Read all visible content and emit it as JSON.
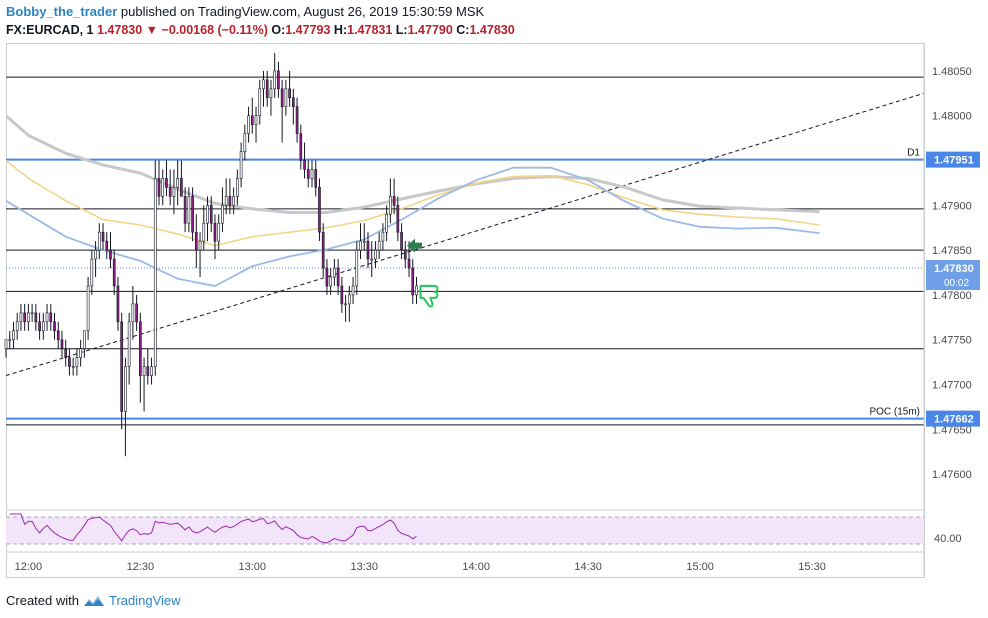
{
  "header": {
    "author": "Bobby_the_trader",
    "published": "published on TradingView.com, August 26, 2019 15:30:59 MSK",
    "symbol": "FX:EURCAD, 1",
    "last": "1.47830",
    "change": "−0.00168 (−0.11%)",
    "o_label": "O:",
    "o": "1.47793",
    "h_label": "H:",
    "h": "1.47831",
    "l_label": "L:",
    "l": "1.47790",
    "c_label": "C:",
    "c": "1.47830"
  },
  "footer": {
    "created_with": "Created with",
    "brand": "TradingView"
  },
  "colors": {
    "up": "#131722",
    "down": "#131722",
    "body_down": "#8b1f86",
    "blue_level": "#4a86e8",
    "ma_gray": "#c8c8c8",
    "ma_yellow": "#f3d488",
    "ma_blue": "#9bbbe6",
    "rsi": "#9c27b0",
    "rsi_fill": "#f3e5f9",
    "arrow_green": "#2f7d4f",
    "hand_green": "#22c55e"
  },
  "chart_data": {
    "type": "candlestick",
    "ylim": [
      1.4756,
      1.4808
    ],
    "y_ticks": [
      "1.47600",
      "1.47650",
      "1.47700",
      "1.47750",
      "1.47800",
      "1.47850",
      "1.47900",
      "1.47950",
      "1.48000",
      "1.48050"
    ],
    "y_tick_values": [
      1.476,
      1.4765,
      1.477,
      1.4775,
      1.478,
      1.4785,
      1.479,
      1.4795,
      1.48,
      1.4805
    ],
    "x_ticks": [
      "12:00",
      "12:30",
      "13:00",
      "13:30",
      "14:00",
      "14:30",
      "15:00",
      "15:30"
    ],
    "x_tick_minutes": [
      0,
      30,
      60,
      90,
      120,
      150,
      180,
      210
    ],
    "x_range_minutes": [
      -6,
      240
    ],
    "horizontal_lines": [
      1.48043,
      1.47896,
      1.4785,
      1.47804,
      1.4774,
      1.47655
    ],
    "blue_levels": [
      {
        "value": 1.47951,
        "label": "1.47951",
        "tag": "D1"
      },
      {
        "value": 1.47662,
        "label": "1.47662",
        "tag": "POC (15m)"
      }
    ],
    "current_price": {
      "value": 1.4783,
      "label": "1.47830",
      "countdown": "00:02"
    },
    "trendline": {
      "from": [
        -6,
        1.4771
      ],
      "to": [
        240,
        1.48025
      ]
    },
    "ma_gray": [
      [
        -6,
        1.48
      ],
      [
        0,
        1.47978
      ],
      [
        10,
        1.47958
      ],
      [
        20,
        1.47945
      ],
      [
        30,
        1.47936
      ],
      [
        40,
        1.47918
      ],
      [
        50,
        1.47902
      ],
      [
        60,
        1.47896
      ],
      [
        70,
        1.47892
      ],
      [
        80,
        1.47892
      ],
      [
        90,
        1.47898
      ],
      [
        100,
        1.47907
      ],
      [
        110,
        1.47916
      ],
      [
        120,
        1.47924
      ],
      [
        130,
        1.4793
      ],
      [
        140,
        1.47932
      ],
      [
        150,
        1.4793
      ],
      [
        160,
        1.4792
      ],
      [
        170,
        1.47906
      ],
      [
        180,
        1.47899
      ],
      [
        190,
        1.47897
      ],
      [
        200,
        1.47895
      ],
      [
        212,
        1.47893
      ]
    ],
    "ma_yellow": [
      [
        -6,
        1.4795
      ],
      [
        0,
        1.4793
      ],
      [
        10,
        1.47905
      ],
      [
        20,
        1.47884
      ],
      [
        30,
        1.47878
      ],
      [
        40,
        1.47868
      ],
      [
        50,
        1.47855
      ],
      [
        60,
        1.47865
      ],
      [
        70,
        1.4787
      ],
      [
        80,
        1.47875
      ],
      [
        90,
        1.47883
      ],
      [
        100,
        1.47896
      ],
      [
        110,
        1.47912
      ],
      [
        120,
        1.47925
      ],
      [
        130,
        1.47932
      ],
      [
        140,
        1.47933
      ],
      [
        150,
        1.47923
      ],
      [
        160,
        1.47908
      ],
      [
        170,
        1.47895
      ],
      [
        180,
        1.4789
      ],
      [
        190,
        1.47887
      ],
      [
        200,
        1.47885
      ],
      [
        212,
        1.47878
      ]
    ],
    "ma_blue": [
      [
        -6,
        1.47905
      ],
      [
        0,
        1.4789
      ],
      [
        10,
        1.47865
      ],
      [
        20,
        1.4785
      ],
      [
        30,
        1.47838
      ],
      [
        40,
        1.47818
      ],
      [
        50,
        1.4781
      ],
      [
        60,
        1.47832
      ],
      [
        70,
        1.47843
      ],
      [
        80,
        1.47851
      ],
      [
        90,
        1.47862
      ],
      [
        100,
        1.47884
      ],
      [
        110,
        1.47908
      ],
      [
        120,
        1.47928
      ],
      [
        130,
        1.47942
      ],
      [
        140,
        1.47942
      ],
      [
        150,
        1.47928
      ],
      [
        160,
        1.47904
      ],
      [
        170,
        1.47885
      ],
      [
        180,
        1.47876
      ],
      [
        190,
        1.47874
      ],
      [
        200,
        1.47875
      ],
      [
        212,
        1.47869
      ]
    ],
    "candles": [
      [
        -6,
        1.4774,
        1.4775,
        1.4773,
        1.4775
      ],
      [
        -5,
        1.4775,
        1.4776,
        1.4774,
        1.4775
      ],
      [
        -4,
        1.4775,
        1.4777,
        1.4774,
        1.4776
      ],
      [
        -3,
        1.4776,
        1.4778,
        1.4775,
        1.4777
      ],
      [
        -2,
        1.4777,
        1.4779,
        1.4776,
        1.4778
      ],
      [
        -1,
        1.4778,
        1.4779,
        1.4776,
        1.4777
      ],
      [
        0,
        1.4777,
        1.4779,
        1.4776,
        1.4778
      ],
      [
        1,
        1.4778,
        1.4779,
        1.4777,
        1.4778
      ],
      [
        2,
        1.4778,
        1.4779,
        1.4776,
        1.4777
      ],
      [
        3,
        1.4777,
        1.4778,
        1.4775,
        1.4776
      ],
      [
        4,
        1.4776,
        1.4778,
        1.4775,
        1.4777
      ],
      [
        5,
        1.4777,
        1.4779,
        1.4776,
        1.4778
      ],
      [
        6,
        1.4778,
        1.4779,
        1.4776,
        1.4777
      ],
      [
        7,
        1.4777,
        1.4778,
        1.4775,
        1.4776
      ],
      [
        8,
        1.4776,
        1.4777,
        1.4774,
        1.4775
      ],
      [
        9,
        1.4775,
        1.4776,
        1.4773,
        1.4774
      ],
      [
        10,
        1.4774,
        1.4775,
        1.4772,
        1.4773
      ],
      [
        11,
        1.4773,
        1.4774,
        1.4771,
        1.4772
      ],
      [
        12,
        1.4772,
        1.4773,
        1.4771,
        1.4772
      ],
      [
        13,
        1.4772,
        1.4774,
        1.4771,
        1.4773
      ],
      [
        14,
        1.4773,
        1.4775,
        1.4772,
        1.4774
      ],
      [
        15,
        1.4774,
        1.4776,
        1.4773,
        1.4776
      ],
      [
        16,
        1.4776,
        1.4782,
        1.4775,
        1.4781
      ],
      [
        17,
        1.4781,
        1.4785,
        1.478,
        1.4784
      ],
      [
        18,
        1.4784,
        1.4786,
        1.4782,
        1.4785
      ],
      [
        19,
        1.4785,
        1.4788,
        1.4784,
        1.4787
      ],
      [
        20,
        1.4787,
        1.4788,
        1.4785,
        1.4786
      ],
      [
        21,
        1.4786,
        1.4787,
        1.4784,
        1.4785
      ],
      [
        22,
        1.4785,
        1.4787,
        1.4783,
        1.4784
      ],
      [
        23,
        1.4784,
        1.4785,
        1.478,
        1.4781
      ],
      [
        24,
        1.4781,
        1.4782,
        1.4776,
        1.4777
      ],
      [
        25,
        1.4777,
        1.4778,
        1.4765,
        1.4767
      ],
      [
        26,
        1.4767,
        1.4773,
        1.4762,
        1.4772
      ],
      [
        27,
        1.4772,
        1.4778,
        1.477,
        1.4777
      ],
      [
        28,
        1.4777,
        1.4781,
        1.4775,
        1.4779
      ],
      [
        29,
        1.4779,
        1.478,
        1.4776,
        1.4777
      ],
      [
        30,
        1.4777,
        1.4778,
        1.4768,
        1.4771
      ],
      [
        31,
        1.4771,
        1.4773,
        1.4767,
        1.4772
      ],
      [
        32,
        1.4772,
        1.4774,
        1.477,
        1.4771
      ],
      [
        33,
        1.4771,
        1.4773,
        1.477,
        1.4772
      ],
      [
        34,
        1.4772,
        1.4795,
        1.4771,
        1.4793
      ],
      [
        35,
        1.4793,
        1.4795,
        1.479,
        1.4791
      ],
      [
        36,
        1.4791,
        1.4794,
        1.479,
        1.4793
      ],
      [
        37,
        1.4793,
        1.4795,
        1.4791,
        1.4792
      ],
      [
        38,
        1.4792,
        1.4794,
        1.479,
        1.4791
      ],
      [
        39,
        1.4791,
        1.4794,
        1.4789,
        1.4792
      ],
      [
        40,
        1.4792,
        1.4795,
        1.479,
        1.4793
      ],
      [
        41,
        1.4793,
        1.4795,
        1.4791,
        1.4791
      ],
      [
        42,
        1.4791,
        1.4792,
        1.4787,
        1.4788
      ],
      [
        43,
        1.4788,
        1.4792,
        1.4787,
        1.4791
      ],
      [
        44,
        1.4791,
        1.4792,
        1.4786,
        1.4787
      ],
      [
        45,
        1.4787,
        1.4789,
        1.4783,
        1.4785
      ],
      [
        46,
        1.4785,
        1.4787,
        1.4782,
        1.4786
      ],
      [
        47,
        1.4786,
        1.479,
        1.4785,
        1.4788
      ],
      [
        48,
        1.4788,
        1.4791,
        1.4786,
        1.479
      ],
      [
        49,
        1.479,
        1.4791,
        1.4787,
        1.4788
      ],
      [
        50,
        1.4788,
        1.4789,
        1.4784,
        1.4786
      ],
      [
        51,
        1.4786,
        1.4789,
        1.4785,
        1.4788
      ],
      [
        52,
        1.4788,
        1.4792,
        1.4787,
        1.479
      ],
      [
        53,
        1.479,
        1.4793,
        1.4789,
        1.4791
      ],
      [
        54,
        1.4791,
        1.4793,
        1.4789,
        1.479
      ],
      [
        55,
        1.479,
        1.4792,
        1.4789,
        1.4791
      ],
      [
        56,
        1.4791,
        1.4794,
        1.479,
        1.4793
      ],
      [
        57,
        1.4793,
        1.4797,
        1.4792,
        1.4796
      ],
      [
        58,
        1.4796,
        1.4799,
        1.4795,
        1.4798
      ],
      [
        59,
        1.4798,
        1.4801,
        1.4797,
        1.48
      ],
      [
        60,
        1.48,
        1.4802,
        1.4798,
        1.4799
      ],
      [
        61,
        1.4799,
        1.4801,
        1.4797,
        1.48
      ],
      [
        62,
        1.48,
        1.4804,
        1.4799,
        1.4803
      ],
      [
        63,
        1.4803,
        1.4805,
        1.4801,
        1.4804
      ],
      [
        64,
        1.4804,
        1.4805,
        1.4801,
        1.4802
      ],
      [
        65,
        1.4802,
        1.4804,
        1.48,
        1.4803
      ],
      [
        66,
        1.4803,
        1.4807,
        1.4802,
        1.4805
      ],
      [
        67,
        1.4805,
        1.4806,
        1.4802,
        1.4803
      ],
      [
        68,
        1.4803,
        1.4804,
        1.4797,
        1.4801
      ],
      [
        69,
        1.4801,
        1.4804,
        1.48,
        1.4803
      ],
      [
        70,
        1.4803,
        1.4805,
        1.4801,
        1.4802
      ],
      [
        71,
        1.4802,
        1.4803,
        1.4799,
        1.4801
      ],
      [
        72,
        1.4801,
        1.4802,
        1.4797,
        1.4798
      ],
      [
        73,
        1.4798,
        1.4799,
        1.4794,
        1.4795
      ],
      [
        74,
        1.4795,
        1.4797,
        1.4793,
        1.4794
      ],
      [
        75,
        1.4794,
        1.4795,
        1.4792,
        1.4793
      ],
      [
        76,
        1.4793,
        1.4795,
        1.4792,
        1.4794
      ],
      [
        77,
        1.4794,
        1.4795,
        1.4791,
        1.4792
      ],
      [
        78,
        1.4792,
        1.4793,
        1.4786,
        1.4787
      ],
      [
        79,
        1.4787,
        1.4788,
        1.4782,
        1.4783
      ],
      [
        80,
        1.4783,
        1.4784,
        1.478,
        1.4781
      ],
      [
        81,
        1.4781,
        1.4783,
        1.478,
        1.4782
      ],
      [
        82,
        1.4782,
        1.4784,
        1.4781,
        1.4783
      ],
      [
        83,
        1.4783,
        1.4784,
        1.478,
        1.4781
      ],
      [
        84,
        1.4781,
        1.4782,
        1.4778,
        1.4779
      ],
      [
        85,
        1.4779,
        1.478,
        1.4777,
        1.4779
      ],
      [
        86,
        1.4779,
        1.4781,
        1.4777,
        1.478
      ],
      [
        87,
        1.478,
        1.4782,
        1.4779,
        1.4781
      ],
      [
        88,
        1.4781,
        1.4786,
        1.478,
        1.4785
      ],
      [
        89,
        1.4785,
        1.4788,
        1.4784,
        1.4786
      ],
      [
        90,
        1.4786,
        1.4788,
        1.4785,
        1.4786
      ],
      [
        91,
        1.4786,
        1.4787,
        1.4783,
        1.4784
      ],
      [
        92,
        1.4784,
        1.4786,
        1.4782,
        1.4784
      ],
      [
        93,
        1.4784,
        1.4786,
        1.4783,
        1.4785
      ],
      [
        94,
        1.4785,
        1.4787,
        1.4784,
        1.4786
      ],
      [
        95,
        1.4786,
        1.4788,
        1.4785,
        1.4787
      ],
      [
        96,
        1.4787,
        1.479,
        1.4786,
        1.4789
      ],
      [
        97,
        1.4789,
        1.4793,
        1.4788,
        1.4791
      ],
      [
        98,
        1.4791,
        1.4793,
        1.4789,
        1.479
      ],
      [
        99,
        1.479,
        1.4791,
        1.4786,
        1.4787
      ],
      [
        100,
        1.4787,
        1.4788,
        1.4784,
        1.4785
      ],
      [
        101,
        1.4785,
        1.4786,
        1.4783,
        1.4784
      ],
      [
        102,
        1.4784,
        1.4786,
        1.4782,
        1.4783
      ],
      [
        103,
        1.4783,
        1.4784,
        1.4779,
        1.478
      ],
      [
        104,
        1.478,
        1.4782,
        1.4779,
        1.4781
      ]
    ],
    "rsi": {
      "label": "40.00",
      "value_level": 40
    }
  }
}
